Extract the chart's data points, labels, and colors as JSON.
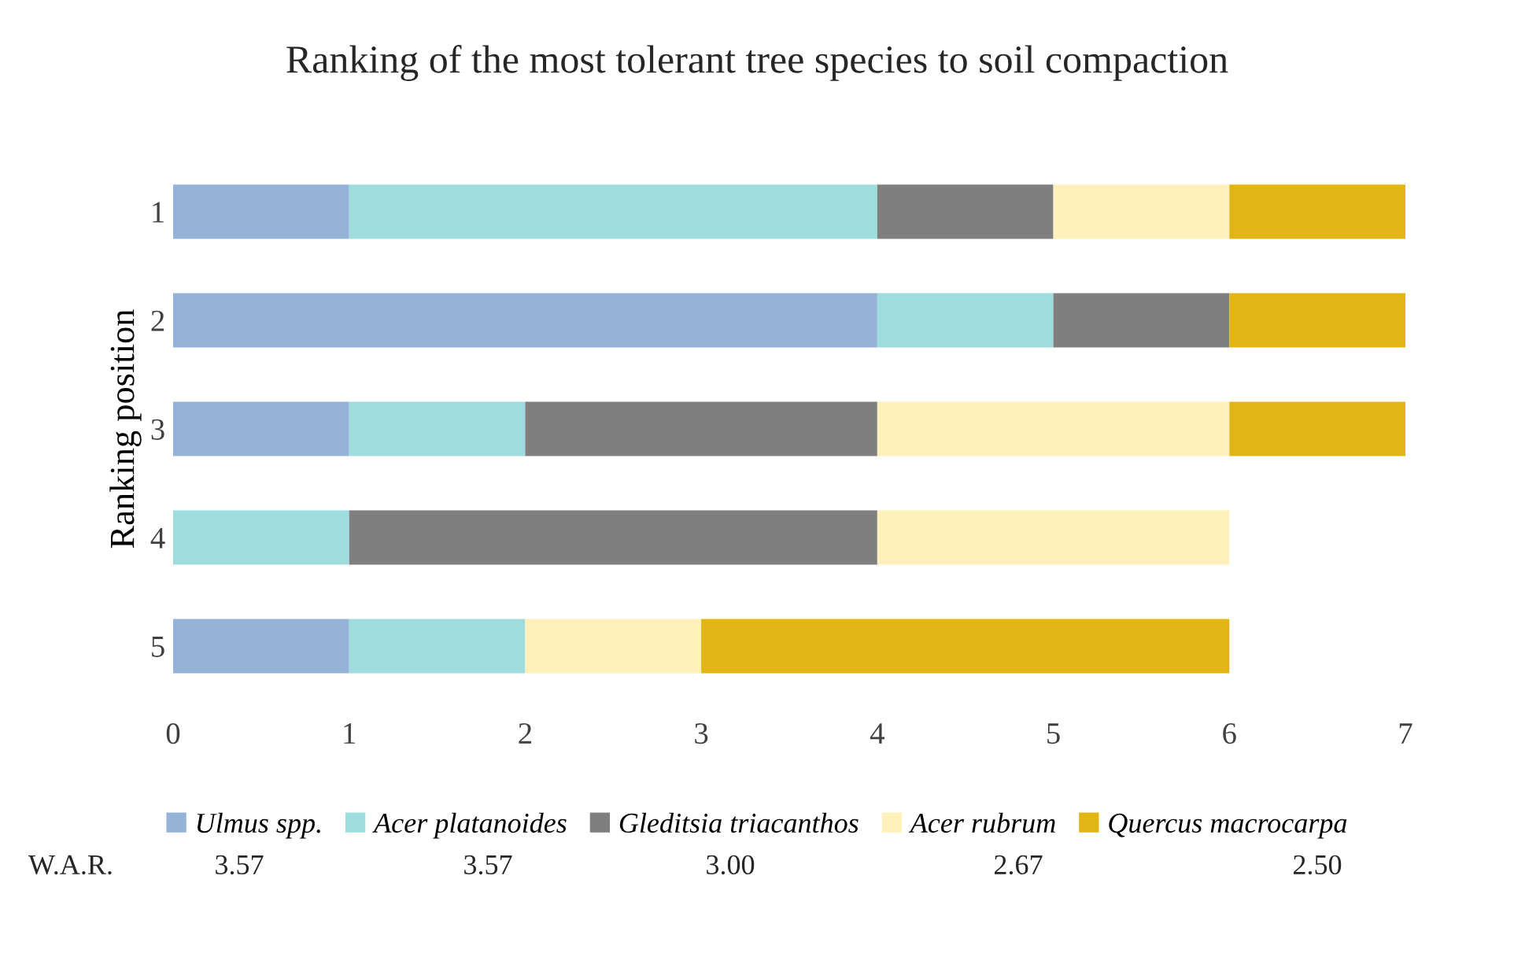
{
  "chart_data": {
    "type": "bar",
    "orientation": "horizontal",
    "stacked": true,
    "title": "Ranking of the most tolerant tree species to soil compaction",
    "ylabel": "Ranking position",
    "categories": [
      "1",
      "2",
      "3",
      "4",
      "5"
    ],
    "series": [
      {
        "name": "Ulmus spp.",
        "color": "#95b3d7",
        "values": [
          1,
          4,
          1,
          0,
          1
        ]
      },
      {
        "name": "Acer platanoides",
        "color": "#9edcdd",
        "values": [
          3,
          1,
          1,
          1,
          1
        ]
      },
      {
        "name": "Gleditsia triacanthos",
        "color": "#7f7f7f",
        "values": [
          1,
          1,
          2,
          3,
          0
        ]
      },
      {
        "name": "Acer rubrum",
        "color": "#fff0bc",
        "values": [
          1,
          0,
          2,
          2,
          1
        ]
      },
      {
        "name": "Quercus macrocarpa",
        "color": "#e0b514",
        "values": [
          1,
          1,
          1,
          0,
          3
        ]
      }
    ],
    "xlim": [
      0,
      7
    ],
    "xticks": [
      0,
      1,
      2,
      3,
      4,
      5,
      6,
      7
    ],
    "grid": false,
    "legend": "bottom",
    "annotations": [
      "W.A.R.",
      "3.57",
      "3.57",
      "3.00",
      "2.67",
      "2.50"
    ]
  }
}
